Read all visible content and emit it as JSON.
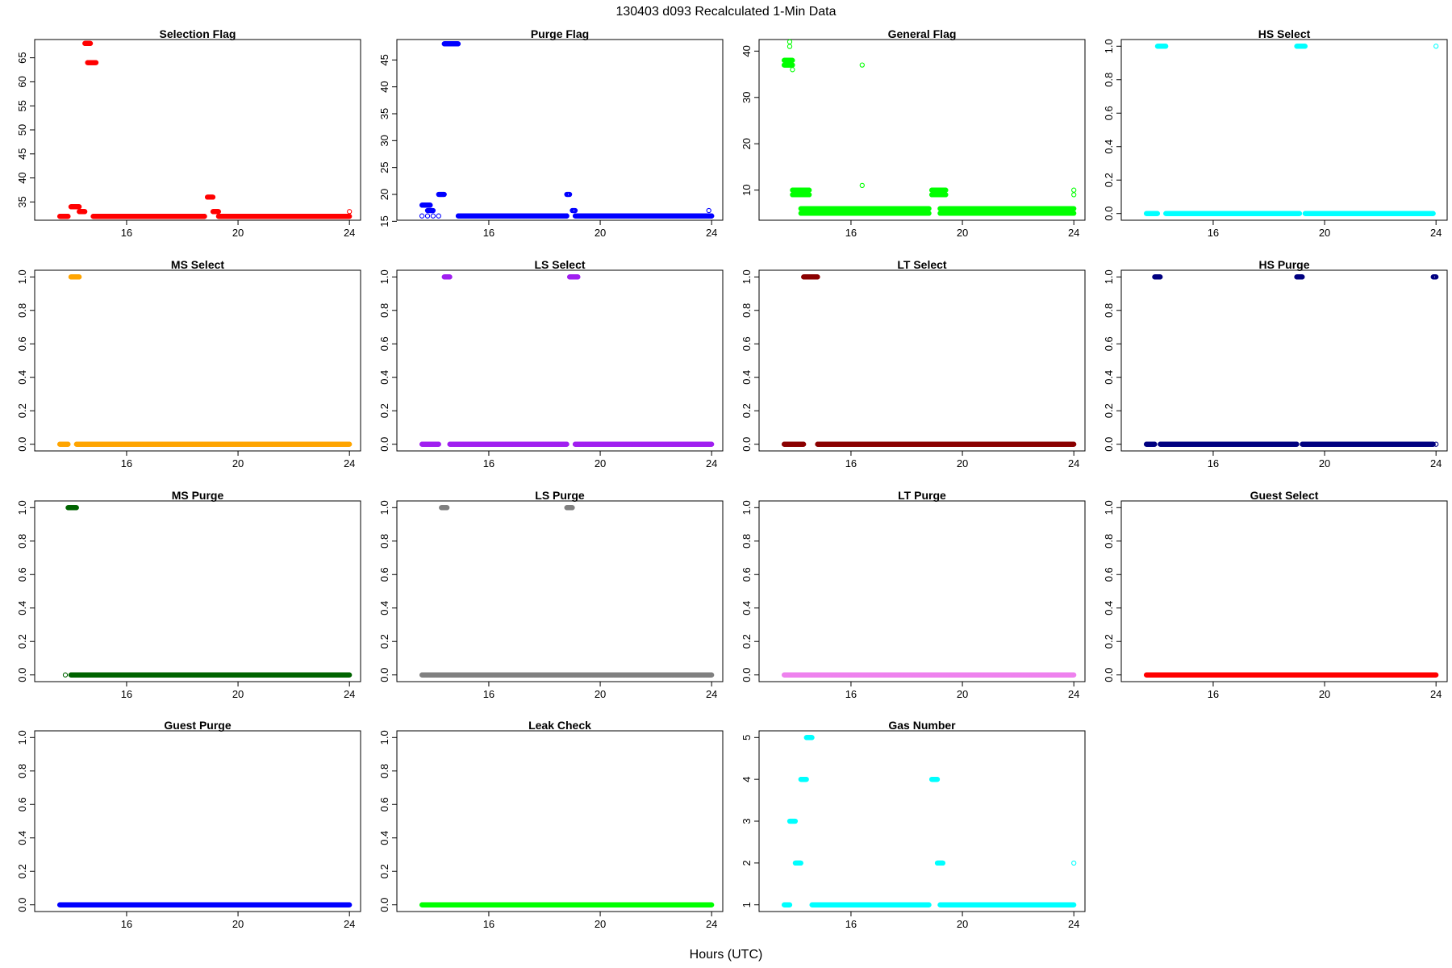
{
  "figure": {
    "title": "130403   d093   Recalculated 1-Min Data",
    "xlabel": "Hours (UTC)",
    "xticks": [
      16,
      20,
      24
    ]
  },
  "chart_data": [
    {
      "type": "scatter",
      "title": "Selection Flag",
      "color": "#ff0000",
      "xlim": [
        12.7,
        24.4
      ],
      "ylim": [
        31.2,
        68.8
      ],
      "yticks": [
        35,
        40,
        45,
        50,
        55,
        60,
        65
      ],
      "ytick_labels": [
        "35",
        "40",
        "45",
        "50",
        "55",
        "60",
        "65"
      ],
      "runs": [
        [
          13.6,
          13.9,
          32
        ],
        [
          14.0,
          14.3,
          34
        ],
        [
          14.3,
          14.5,
          33
        ],
        [
          14.5,
          14.7,
          68
        ],
        [
          14.6,
          14.9,
          64
        ],
        [
          14.8,
          18.8,
          32
        ],
        [
          18.9,
          19.1,
          36
        ],
        [
          19.1,
          19.3,
          33
        ],
        [
          19.3,
          24.0,
          32
        ]
      ],
      "points": [
        [
          24.0,
          33
        ]
      ]
    },
    {
      "type": "scatter",
      "title": "Purge Flag",
      "color": "#0000ff",
      "xlim": [
        12.7,
        24.4
      ],
      "ylim": [
        15.2,
        48.8
      ],
      "yticks": [
        15,
        20,
        25,
        30,
        35,
        40,
        45
      ],
      "ytick_labels": [
        "15",
        "20",
        "25",
        "30",
        "35",
        "40",
        "45"
      ],
      "runs": [
        [
          13.6,
          13.9,
          18
        ],
        [
          13.8,
          14.0,
          17
        ],
        [
          14.2,
          14.4,
          20
        ],
        [
          14.4,
          14.9,
          48
        ],
        [
          14.9,
          18.8,
          16
        ],
        [
          18.8,
          18.9,
          20
        ],
        [
          19.0,
          19.1,
          17
        ],
        [
          19.1,
          24.0,
          16
        ]
      ],
      "points": [
        [
          13.6,
          16
        ],
        [
          13.8,
          16
        ],
        [
          14.0,
          16
        ],
        [
          14.2,
          16
        ],
        [
          18.8,
          16
        ],
        [
          23.9,
          17
        ],
        [
          24.0,
          16
        ]
      ]
    },
    {
      "type": "scatter",
      "title": "General Flag",
      "color": "#00ff00",
      "xlim": [
        12.7,
        24.4
      ],
      "ylim": [
        3.5,
        42.5
      ],
      "yticks": [
        10,
        20,
        30,
        40
      ],
      "ytick_labels": [
        "10",
        "20",
        "30",
        "40"
      ],
      "runs": [
        [
          13.6,
          13.9,
          38
        ],
        [
          13.6,
          13.9,
          37
        ],
        [
          13.9,
          14.5,
          10
        ],
        [
          13.9,
          14.5,
          9
        ],
        [
          14.2,
          18.8,
          6
        ],
        [
          14.2,
          18.8,
          5
        ],
        [
          18.9,
          19.4,
          10
        ],
        [
          18.9,
          19.4,
          9
        ],
        [
          19.2,
          24.0,
          6
        ],
        [
          19.2,
          24.0,
          5
        ]
      ],
      "points": [
        [
          13.8,
          42
        ],
        [
          13.8,
          41
        ],
        [
          13.9,
          36
        ],
        [
          16.4,
          37
        ],
        [
          16.4,
          11
        ],
        [
          24.0,
          10
        ],
        [
          24.0,
          9
        ]
      ]
    },
    {
      "type": "scatter",
      "title": "HS Select",
      "color": "#00ffff",
      "xlim": [
        12.7,
        24.4
      ],
      "ylim": [
        -0.04,
        1.04
      ],
      "yticks": [
        0,
        0.2,
        0.4,
        0.6,
        0.8,
        1.0
      ],
      "ytick_labels": [
        "0.0",
        "0.2",
        "0.4",
        "0.6",
        "0.8",
        "1.0"
      ],
      "runs": [
        [
          13.6,
          14.0,
          0
        ],
        [
          14.0,
          14.3,
          1
        ],
        [
          14.3,
          19.1,
          0
        ],
        [
          19.0,
          19.3,
          1
        ],
        [
          19.3,
          23.9,
          0
        ]
      ],
      "points": [
        [
          24.0,
          1
        ]
      ]
    },
    {
      "type": "scatter",
      "title": "MS Select",
      "color": "#ffa500",
      "xlim": [
        12.7,
        24.4
      ],
      "ylim": [
        -0.04,
        1.04
      ],
      "yticks": [
        0,
        0.2,
        0.4,
        0.6,
        0.8,
        1.0
      ],
      "ytick_labels": [
        "0.0",
        "0.2",
        "0.4",
        "0.6",
        "0.8",
        "1.0"
      ],
      "runs": [
        [
          13.6,
          13.9,
          0
        ],
        [
          14.0,
          14.3,
          1
        ],
        [
          14.2,
          24.0,
          0
        ]
      ],
      "points": []
    },
    {
      "type": "scatter",
      "title": "LS Select",
      "color": "#a020f0",
      "xlim": [
        12.7,
        24.4
      ],
      "ylim": [
        -0.04,
        1.04
      ],
      "yticks": [
        0,
        0.2,
        0.4,
        0.6,
        0.8,
        1.0
      ],
      "ytick_labels": [
        "0.0",
        "0.2",
        "0.4",
        "0.6",
        "0.8",
        "1.0"
      ],
      "runs": [
        [
          13.6,
          14.2,
          0
        ],
        [
          14.4,
          14.6,
          1
        ],
        [
          14.6,
          18.8,
          0
        ],
        [
          18.9,
          19.2,
          1
        ],
        [
          19.1,
          24.0,
          0
        ]
      ],
      "points": []
    },
    {
      "type": "scatter",
      "title": "LT Select",
      "color": "#8b0000",
      "xlim": [
        12.7,
        24.4
      ],
      "ylim": [
        -0.04,
        1.04
      ],
      "yticks": [
        0,
        0.2,
        0.4,
        0.6,
        0.8,
        1.0
      ],
      "ytick_labels": [
        "0.0",
        "0.2",
        "0.4",
        "0.6",
        "0.8",
        "1.0"
      ],
      "runs": [
        [
          13.6,
          14.3,
          0
        ],
        [
          14.3,
          14.8,
          1
        ],
        [
          14.8,
          24.0,
          0
        ]
      ],
      "points": []
    },
    {
      "type": "scatter",
      "title": "HS Purge",
      "color": "#000080",
      "xlim": [
        12.7,
        24.4
      ],
      "ylim": [
        -0.04,
        1.04
      ],
      "yticks": [
        0,
        0.2,
        0.4,
        0.6,
        0.8,
        1.0
      ],
      "ytick_labels": [
        "0.0",
        "0.2",
        "0.4",
        "0.6",
        "0.8",
        "1.0"
      ],
      "runs": [
        [
          13.6,
          13.9,
          0
        ],
        [
          13.9,
          14.1,
          1
        ],
        [
          14.1,
          19.0,
          0
        ],
        [
          19.0,
          19.2,
          1
        ],
        [
          19.2,
          23.9,
          0
        ],
        [
          23.9,
          24.0,
          1
        ]
      ],
      "points": [
        [
          24.0,
          0
        ]
      ]
    },
    {
      "type": "scatter",
      "title": "MS Purge",
      "color": "#006400",
      "xlim": [
        12.7,
        24.4
      ],
      "ylim": [
        -0.04,
        1.04
      ],
      "yticks": [
        0,
        0.2,
        0.4,
        0.6,
        0.8,
        1.0
      ],
      "ytick_labels": [
        "0.0",
        "0.2",
        "0.4",
        "0.6",
        "0.8",
        "1.0"
      ],
      "runs": [
        [
          13.9,
          14.2,
          1
        ],
        [
          14.0,
          24.0,
          0
        ]
      ],
      "points": [
        [
          13.8,
          0
        ]
      ]
    },
    {
      "type": "scatter",
      "title": "LS Purge",
      "color": "#808080",
      "xlim": [
        12.7,
        24.4
      ],
      "ylim": [
        -0.04,
        1.04
      ],
      "yticks": [
        0,
        0.2,
        0.4,
        0.6,
        0.8,
        1.0
      ],
      "ytick_labels": [
        "0.0",
        "0.2",
        "0.4",
        "0.6",
        "0.8",
        "1.0"
      ],
      "runs": [
        [
          14.3,
          14.5,
          1
        ],
        [
          18.8,
          19.0,
          1
        ],
        [
          13.6,
          24.0,
          0
        ]
      ],
      "points": []
    },
    {
      "type": "scatter",
      "title": "LT Purge",
      "color": "#ee82ee",
      "xlim": [
        12.7,
        24.4
      ],
      "ylim": [
        -0.04,
        1.04
      ],
      "yticks": [
        0,
        0.2,
        0.4,
        0.6,
        0.8,
        1.0
      ],
      "ytick_labels": [
        "0.0",
        "0.2",
        "0.4",
        "0.6",
        "0.8",
        "1.0"
      ],
      "runs": [
        [
          13.6,
          24.0,
          0
        ]
      ],
      "points": []
    },
    {
      "type": "scatter",
      "title": "Guest Select",
      "color": "#ff0000",
      "xlim": [
        12.7,
        24.4
      ],
      "ylim": [
        -0.04,
        1.04
      ],
      "yticks": [
        0,
        0.2,
        0.4,
        0.6,
        0.8,
        1.0
      ],
      "ytick_labels": [
        "0.0",
        "0.2",
        "0.4",
        "0.6",
        "0.8",
        "1.0"
      ],
      "runs": [
        [
          13.6,
          24.0,
          0
        ]
      ],
      "points": []
    },
    {
      "type": "scatter",
      "title": "Guest Purge",
      "color": "#0000ff",
      "xlim": [
        12.7,
        24.4
      ],
      "ylim": [
        -0.04,
        1.04
      ],
      "yticks": [
        0,
        0.2,
        0.4,
        0.6,
        0.8,
        1.0
      ],
      "ytick_labels": [
        "0.0",
        "0.2",
        "0.4",
        "0.6",
        "0.8",
        "1.0"
      ],
      "runs": [
        [
          13.6,
          24.0,
          0
        ]
      ],
      "points": []
    },
    {
      "type": "scatter",
      "title": "Leak Check",
      "color": "#00ff00",
      "xlim": [
        12.7,
        24.4
      ],
      "ylim": [
        -0.04,
        1.04
      ],
      "yticks": [
        0,
        0.2,
        0.4,
        0.6,
        0.8,
        1.0
      ],
      "ytick_labels": [
        "0.0",
        "0.2",
        "0.4",
        "0.6",
        "0.8",
        "1.0"
      ],
      "runs": [
        [
          13.6,
          24.0,
          0
        ]
      ],
      "points": []
    },
    {
      "type": "scatter",
      "title": "Gas Number",
      "color": "#00ffff",
      "xlim": [
        12.7,
        24.4
      ],
      "ylim": [
        0.84,
        5.16
      ],
      "yticks": [
        1,
        2,
        3,
        4,
        5
      ],
      "ytick_labels": [
        "1",
        "2",
        "3",
        "4",
        "5"
      ],
      "runs": [
        [
          13.6,
          13.8,
          1
        ],
        [
          13.8,
          14.0,
          3
        ],
        [
          14.0,
          14.2,
          2
        ],
        [
          14.2,
          14.4,
          4
        ],
        [
          14.4,
          14.6,
          5
        ],
        [
          14.6,
          18.8,
          1
        ],
        [
          18.9,
          19.1,
          4
        ],
        [
          19.1,
          19.3,
          2
        ],
        [
          19.2,
          24.0,
          1
        ]
      ],
      "points": [
        [
          24.0,
          2
        ]
      ]
    }
  ]
}
